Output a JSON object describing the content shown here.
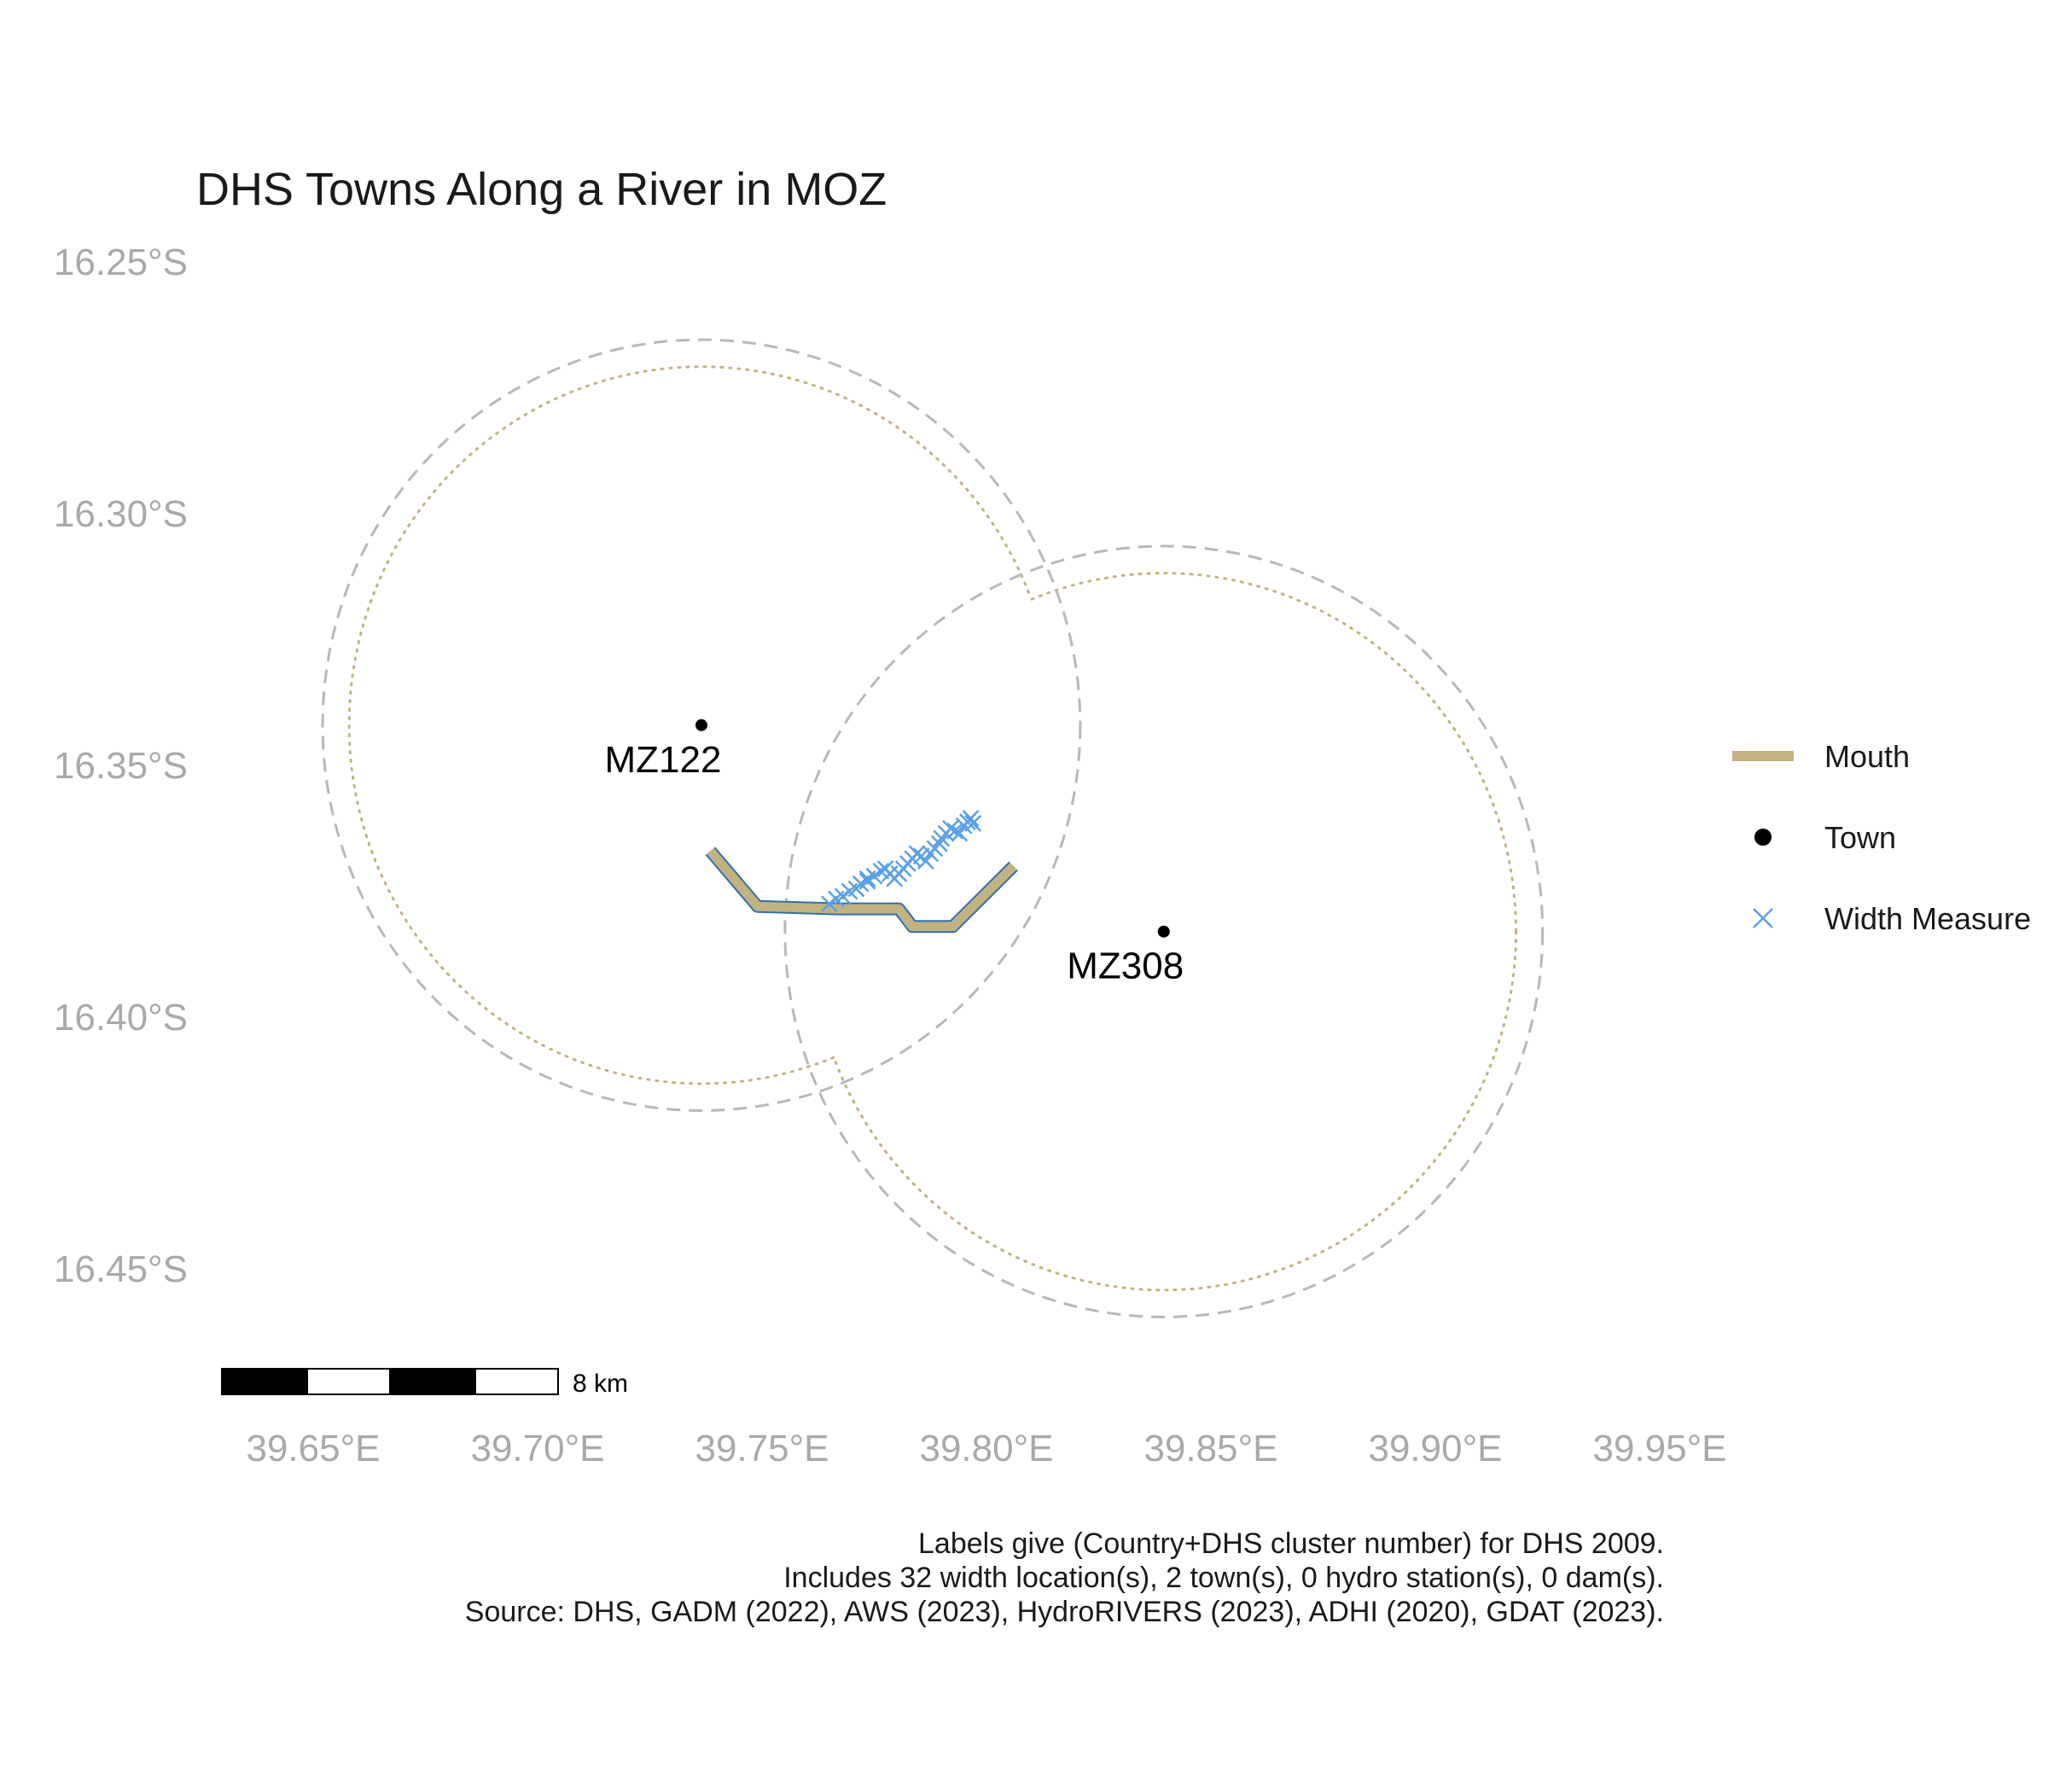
{
  "title": "DHS Towns Along a River in MOZ",
  "axes": {
    "x_ticks": [
      "39.65°E",
      "39.70°E",
      "39.75°E",
      "39.80°E",
      "39.85°E",
      "39.90°E",
      "39.95°E"
    ],
    "y_ticks": [
      "16.25°S",
      "16.30°S",
      "16.35°S",
      "16.40°S",
      "16.45°S"
    ],
    "x_values": [
      39.65,
      39.7,
      39.75,
      39.8,
      39.85,
      39.9,
      39.95
    ],
    "y_values": [
      -16.25,
      -16.3,
      -16.35,
      -16.4,
      -16.45
    ]
  },
  "towns": [
    {
      "label": "MZ122",
      "lon": 39.7365,
      "lat": -16.342
    },
    {
      "label": "MZ308",
      "lon": 39.8395,
      "lat": -16.383
    }
  ],
  "buffers": [
    {
      "name": "MZ122 buffer",
      "center_lon": 39.7365,
      "center_lat": -16.342,
      "radius_deg": 0.087
    },
    {
      "name": "MZ308 buffer",
      "center_lon": 39.8395,
      "center_lat": -16.383,
      "radius_deg": 0.087
    }
  ],
  "river": {
    "name": "Mouth",
    "path": [
      [
        39.7385,
        -16.367
      ],
      [
        39.749,
        -16.378
      ],
      [
        39.767,
        -16.3785
      ],
      [
        39.7805,
        -16.3785
      ],
      [
        39.7835,
        -16.382
      ],
      [
        39.7925,
        -16.382
      ],
      [
        39.806,
        -16.37
      ]
    ]
  },
  "width_measures": [
    [
      39.765,
      -16.3775
    ],
    [
      39.7665,
      -16.3765
    ],
    [
      39.768,
      -16.376
    ],
    [
      39.7695,
      -16.375
    ],
    [
      39.771,
      -16.3745
    ],
    [
      39.772,
      -16.3735
    ],
    [
      39.7735,
      -16.373
    ],
    [
      39.775,
      -16.372
    ],
    [
      39.7765,
      -16.371
    ],
    [
      39.7775,
      -16.3705
    ],
    [
      39.7785,
      -16.3715
    ],
    [
      39.7795,
      -16.3725
    ],
    [
      39.7805,
      -16.3715
    ],
    [
      39.7815,
      -16.3705
    ],
    [
      39.7825,
      -16.3695
    ],
    [
      39.7835,
      -16.3685
    ],
    [
      39.7845,
      -16.3675
    ],
    [
      39.7855,
      -16.368
    ],
    [
      39.7865,
      -16.369
    ],
    [
      39.7875,
      -16.3675
    ],
    [
      39.7885,
      -16.3665
    ],
    [
      39.7895,
      -16.3655
    ],
    [
      39.79,
      -16.3645
    ],
    [
      39.791,
      -16.3635
    ],
    [
      39.792,
      -16.3625
    ],
    [
      39.793,
      -16.363
    ],
    [
      39.794,
      -16.3635
    ],
    [
      39.795,
      -16.362
    ],
    [
      39.7958,
      -16.3612
    ],
    [
      39.7965,
      -16.3605
    ],
    [
      39.797,
      -16.3615
    ],
    [
      39.7735,
      -16.3725
    ]
  ],
  "legend": {
    "items": [
      {
        "label": "Mouth",
        "icon": "line-swatch",
        "color": "#c2b280"
      },
      {
        "label": "Town",
        "icon": "dot",
        "color": "#000000"
      },
      {
        "label": "Width Measure",
        "icon": "cross",
        "color": "#5aa0e6"
      }
    ]
  },
  "scale_bar": {
    "label": "8 km"
  },
  "caption": {
    "line1": "Labels give (Country+DHS cluster number) for DHS 2009.",
    "line2": "Includes 32 width location(s), 2 town(s), 0 hydro station(s), 0 dam(s).",
    "line3": "Source: DHS, GADM (2022), AWS (2023), HydroRIVERS (2023), ADHI (2020), GDAT (2023)."
  },
  "colors": {
    "river_fill": "#c2b280",
    "river_edge": "#2f6fb0",
    "width_measure": "#5aa0e6",
    "buffer_dashed": "#b8b8b8",
    "buffer_union_dotted": "#c2b280",
    "axis_text": "#a9a9a9"
  }
}
